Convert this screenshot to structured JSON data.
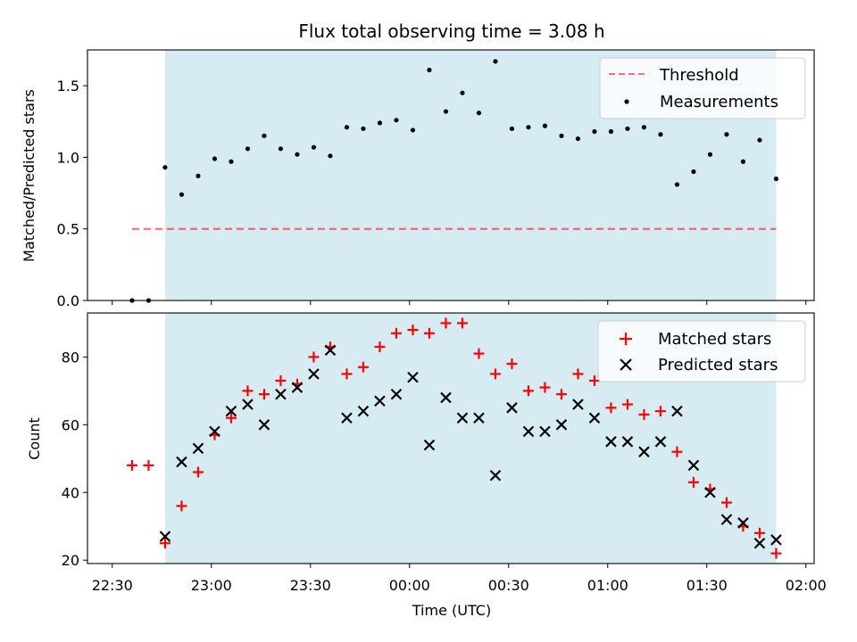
{
  "chart_data": {
    "title": "Flux total observing time = 3.08 h",
    "shared_x": {
      "label": "Time (UTC)",
      "ticks": [
        "22:30",
        "23:00",
        "23:30",
        "00:00",
        "00:30",
        "01:00",
        "01:30",
        "02:00"
      ],
      "tick_values_min": [
        0,
        30,
        60,
        90,
        120,
        150,
        180,
        210
      ],
      "range_min": [
        -7.5,
        212.5
      ]
    },
    "highlight_band": {
      "from_min": 16,
      "to_min": 201,
      "color": "#add8e6"
    },
    "top": {
      "type": "scatter",
      "ylabel": "Matched/Predicted stars",
      "ylim": [
        0,
        1.75
      ],
      "yticks": [
        0.0,
        0.5,
        1.0,
        1.5
      ],
      "yticklabels": [
        "0.0",
        "0.5",
        "1.0",
        "1.5"
      ],
      "legend_position": "upper-right",
      "threshold": {
        "name": "Threshold",
        "value": 0.5,
        "from_min": 6,
        "to_min": 201,
        "color": "#ff0000"
      },
      "measurements": {
        "name": "Measurements",
        "color": "#000000",
        "x": [
          6,
          11,
          16,
          21,
          26,
          31,
          36,
          41,
          46,
          51,
          56,
          61,
          66,
          71,
          76,
          81,
          86,
          91,
          96,
          101,
          106,
          111,
          116,
          121,
          126,
          131,
          136,
          141,
          146,
          151,
          156,
          161,
          166,
          171,
          176,
          181,
          186,
          191,
          196,
          201
        ],
        "y": [
          0,
          0,
          0.93,
          0.74,
          0.87,
          0.99,
          0.97,
          1.06,
          1.15,
          1.06,
          1.02,
          1.07,
          1.01,
          1.21,
          1.2,
          1.24,
          1.26,
          1.19,
          1.61,
          1.32,
          1.45,
          1.31,
          1.67,
          1.2,
          1.21,
          1.22,
          1.15,
          1.13,
          1.18,
          1.18,
          1.2,
          1.21,
          1.16,
          0.81,
          0.9,
          1.02,
          1.16,
          0.97,
          1.12,
          0.85
        ]
      }
    },
    "bottom": {
      "type": "scatter",
      "ylabel": "Count",
      "ylim": [
        19,
        93
      ],
      "yticks": [
        20,
        40,
        60,
        80
      ],
      "yticklabels": [
        "20",
        "40",
        "60",
        "80"
      ],
      "legend_position": "upper-right",
      "matched": {
        "name": "Matched stars",
        "color": "#ff0000",
        "marker": "+",
        "x": [
          6,
          11,
          16,
          21,
          26,
          31,
          36,
          41,
          46,
          51,
          56,
          61,
          66,
          71,
          76,
          81,
          86,
          91,
          96,
          101,
          106,
          111,
          116,
          121,
          126,
          131,
          136,
          141,
          146,
          151,
          156,
          161,
          166,
          171,
          176,
          181,
          186,
          191,
          196,
          201
        ],
        "y": [
          48,
          48,
          25,
          36,
          46,
          57,
          62,
          70,
          69,
          73,
          72,
          80,
          83,
          75,
          77,
          83,
          87,
          88,
          87,
          90,
          90,
          81,
          75,
          78,
          70,
          71,
          69,
          75,
          73,
          65,
          66,
          63,
          64,
          52,
          43,
          41,
          37,
          30,
          28,
          22
        ]
      },
      "predicted": {
        "name": "Predicted stars",
        "color": "#000000",
        "marker": "x",
        "x": [
          16,
          21,
          26,
          31,
          36,
          41,
          46,
          51,
          56,
          61,
          66,
          71,
          76,
          81,
          86,
          91,
          96,
          101,
          106,
          111,
          116,
          121,
          126,
          131,
          136,
          141,
          146,
          151,
          156,
          161,
          166,
          171,
          176,
          181,
          186,
          191,
          196,
          201
        ],
        "y": [
          27,
          49,
          53,
          58,
          64,
          66,
          60,
          69,
          71,
          75,
          82,
          62,
          64,
          67,
          69,
          74,
          54,
          68,
          62,
          62,
          45,
          65,
          58,
          58,
          60,
          66,
          62,
          55,
          55,
          52,
          55,
          64,
          48,
          40,
          32,
          31,
          25,
          26
        ]
      }
    }
  }
}
